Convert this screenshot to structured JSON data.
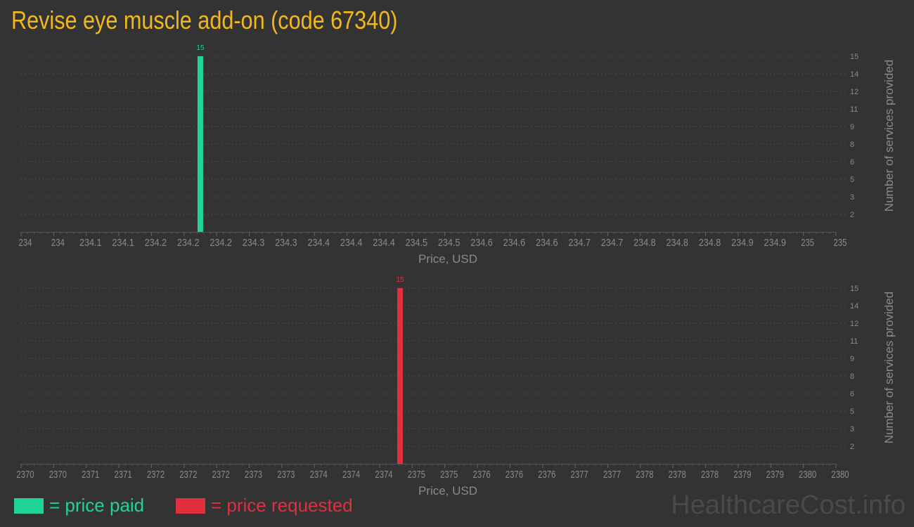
{
  "title": "Revise eye muscle add-on (code 67340)",
  "chart_data": [
    {
      "type": "bar",
      "xlabel": "Price, USD",
      "ylabel": "Number of services provided",
      "xlim": [
        234,
        235
      ],
      "x_tick_labels": [
        "234",
        "234",
        "234.1",
        "234.1",
        "234.2",
        "234.2",
        "234.2",
        "234.3",
        "234.3",
        "234.4",
        "234.4",
        "234.4",
        "234.5",
        "234.5",
        "234.6",
        "234.6",
        "234.6",
        "234.7",
        "234.7",
        "234.8",
        "234.8",
        "234.8",
        "234.9",
        "234.9",
        "235",
        "235"
      ],
      "y_tick_labels": [
        "2",
        "3",
        "5",
        "6",
        "8",
        "9",
        "11",
        "12",
        "14",
        "15"
      ],
      "ylim": [
        0,
        15
      ],
      "grid": true,
      "color": "#1fd494",
      "bars": [
        {
          "x": 234.22,
          "value": 15,
          "label": "15"
        }
      ]
    },
    {
      "type": "bar",
      "xlabel": "Price, USD",
      "ylabel": "Number of services provided",
      "xlim": [
        2370,
        2380
      ],
      "x_tick_labels": [
        "2370",
        "2370",
        "2371",
        "2371",
        "2372",
        "2372",
        "2372",
        "2373",
        "2373",
        "2374",
        "2374",
        "2374",
        "2375",
        "2375",
        "2376",
        "2376",
        "2376",
        "2377",
        "2377",
        "2378",
        "2378",
        "2378",
        "2379",
        "2379",
        "2380",
        "2380"
      ],
      "y_tick_labels": [
        "2",
        "3",
        "5",
        "6",
        "8",
        "9",
        "11",
        "12",
        "14",
        "15"
      ],
      "ylim": [
        0,
        15
      ],
      "grid": true,
      "color": "#e0303f",
      "bars": [
        {
          "x": 2374.65,
          "value": 15,
          "label": "15"
        }
      ]
    }
  ],
  "legend": [
    {
      "label": "= price paid",
      "color": "#1fd494"
    },
    {
      "label": "= price requested",
      "color": "#e0303f"
    }
  ],
  "watermark": "HealthcareCost.info"
}
